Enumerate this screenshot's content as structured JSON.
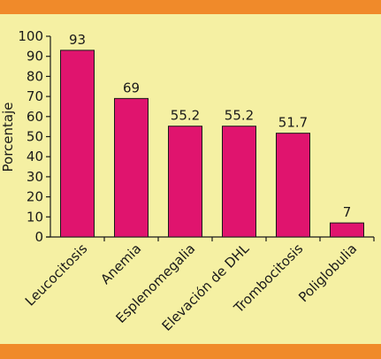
{
  "colors": {
    "background": "#f5f0a3",
    "band": "#f08a2a",
    "bar": "#e0146e",
    "bar_stroke": "#1a1a1a",
    "axis": "#1a1a1a",
    "text": "#1a1a1a"
  },
  "chart_data": {
    "type": "bar",
    "categories": [
      "Leucocitosis",
      "Anemia",
      "Esplenomegalia",
      "Elevación de DHL",
      "Trombocitosis",
      "Poliglobulia"
    ],
    "values": [
      93,
      69,
      55.2,
      55.2,
      51.7,
      7
    ],
    "data_labels": [
      "93",
      "69",
      "55.2",
      "55.2",
      "51.7",
      "7"
    ],
    "ylabel": "Porcentaje",
    "xlabel": "",
    "title": "",
    "ylim": [
      0,
      100
    ],
    "yticks": [
      0,
      10,
      20,
      30,
      40,
      50,
      60,
      70,
      80,
      90,
      100
    ],
    "grid": false,
    "legend": "none"
  }
}
